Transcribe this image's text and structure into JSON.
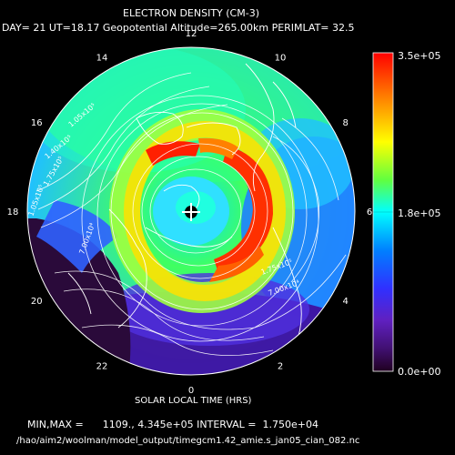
{
  "chart_data": {
    "type": "heatmap",
    "projection": "polar",
    "title": "ELECTRON DENSITY (CM-3)",
    "subtitle": "DAY= 21 UT=18.17 Geopotential Altitude=265.00km PERIMLAT= 32.5",
    "xlabel": "SOLAR LOCAL TIME (HRS)",
    "local_time_ticks": [
      "12",
      "10",
      "8",
      "6",
      "4",
      "2",
      "0",
      "22",
      "20",
      "18",
      "16",
      "14"
    ],
    "colorbar": {
      "max_label": "3.5e+05",
      "mid_label": "1.8e+05",
      "min_label": "0.0e+00",
      "range": [
        0,
        350000
      ],
      "colors": [
        "#ff0000",
        "#ff8000",
        "#ffff00",
        "#00ff80",
        "#00ffff",
        "#0080ff",
        "#3030ff",
        "#6020c0",
        "#401070",
        "#200020"
      ]
    },
    "stats_text": "MIN,MAX =      1109., 4.345e+05 INTERVAL =  1.750e+04",
    "min": 1109,
    "max": 434500,
    "interval": 17500,
    "contour_labels": [
      "1.05x10⁵",
      "1.40x10⁵",
      "1.75x10⁵",
      "1.05x10⁵",
      "7.00x10⁴",
      "1.75x10⁵",
      "7.00x10⁴"
    ],
    "grid": true
  },
  "footer": {
    "path": "/hao/aim2/woolman/model_output/timegcm1.42_amie.s_jan05_cian_082.nc"
  }
}
